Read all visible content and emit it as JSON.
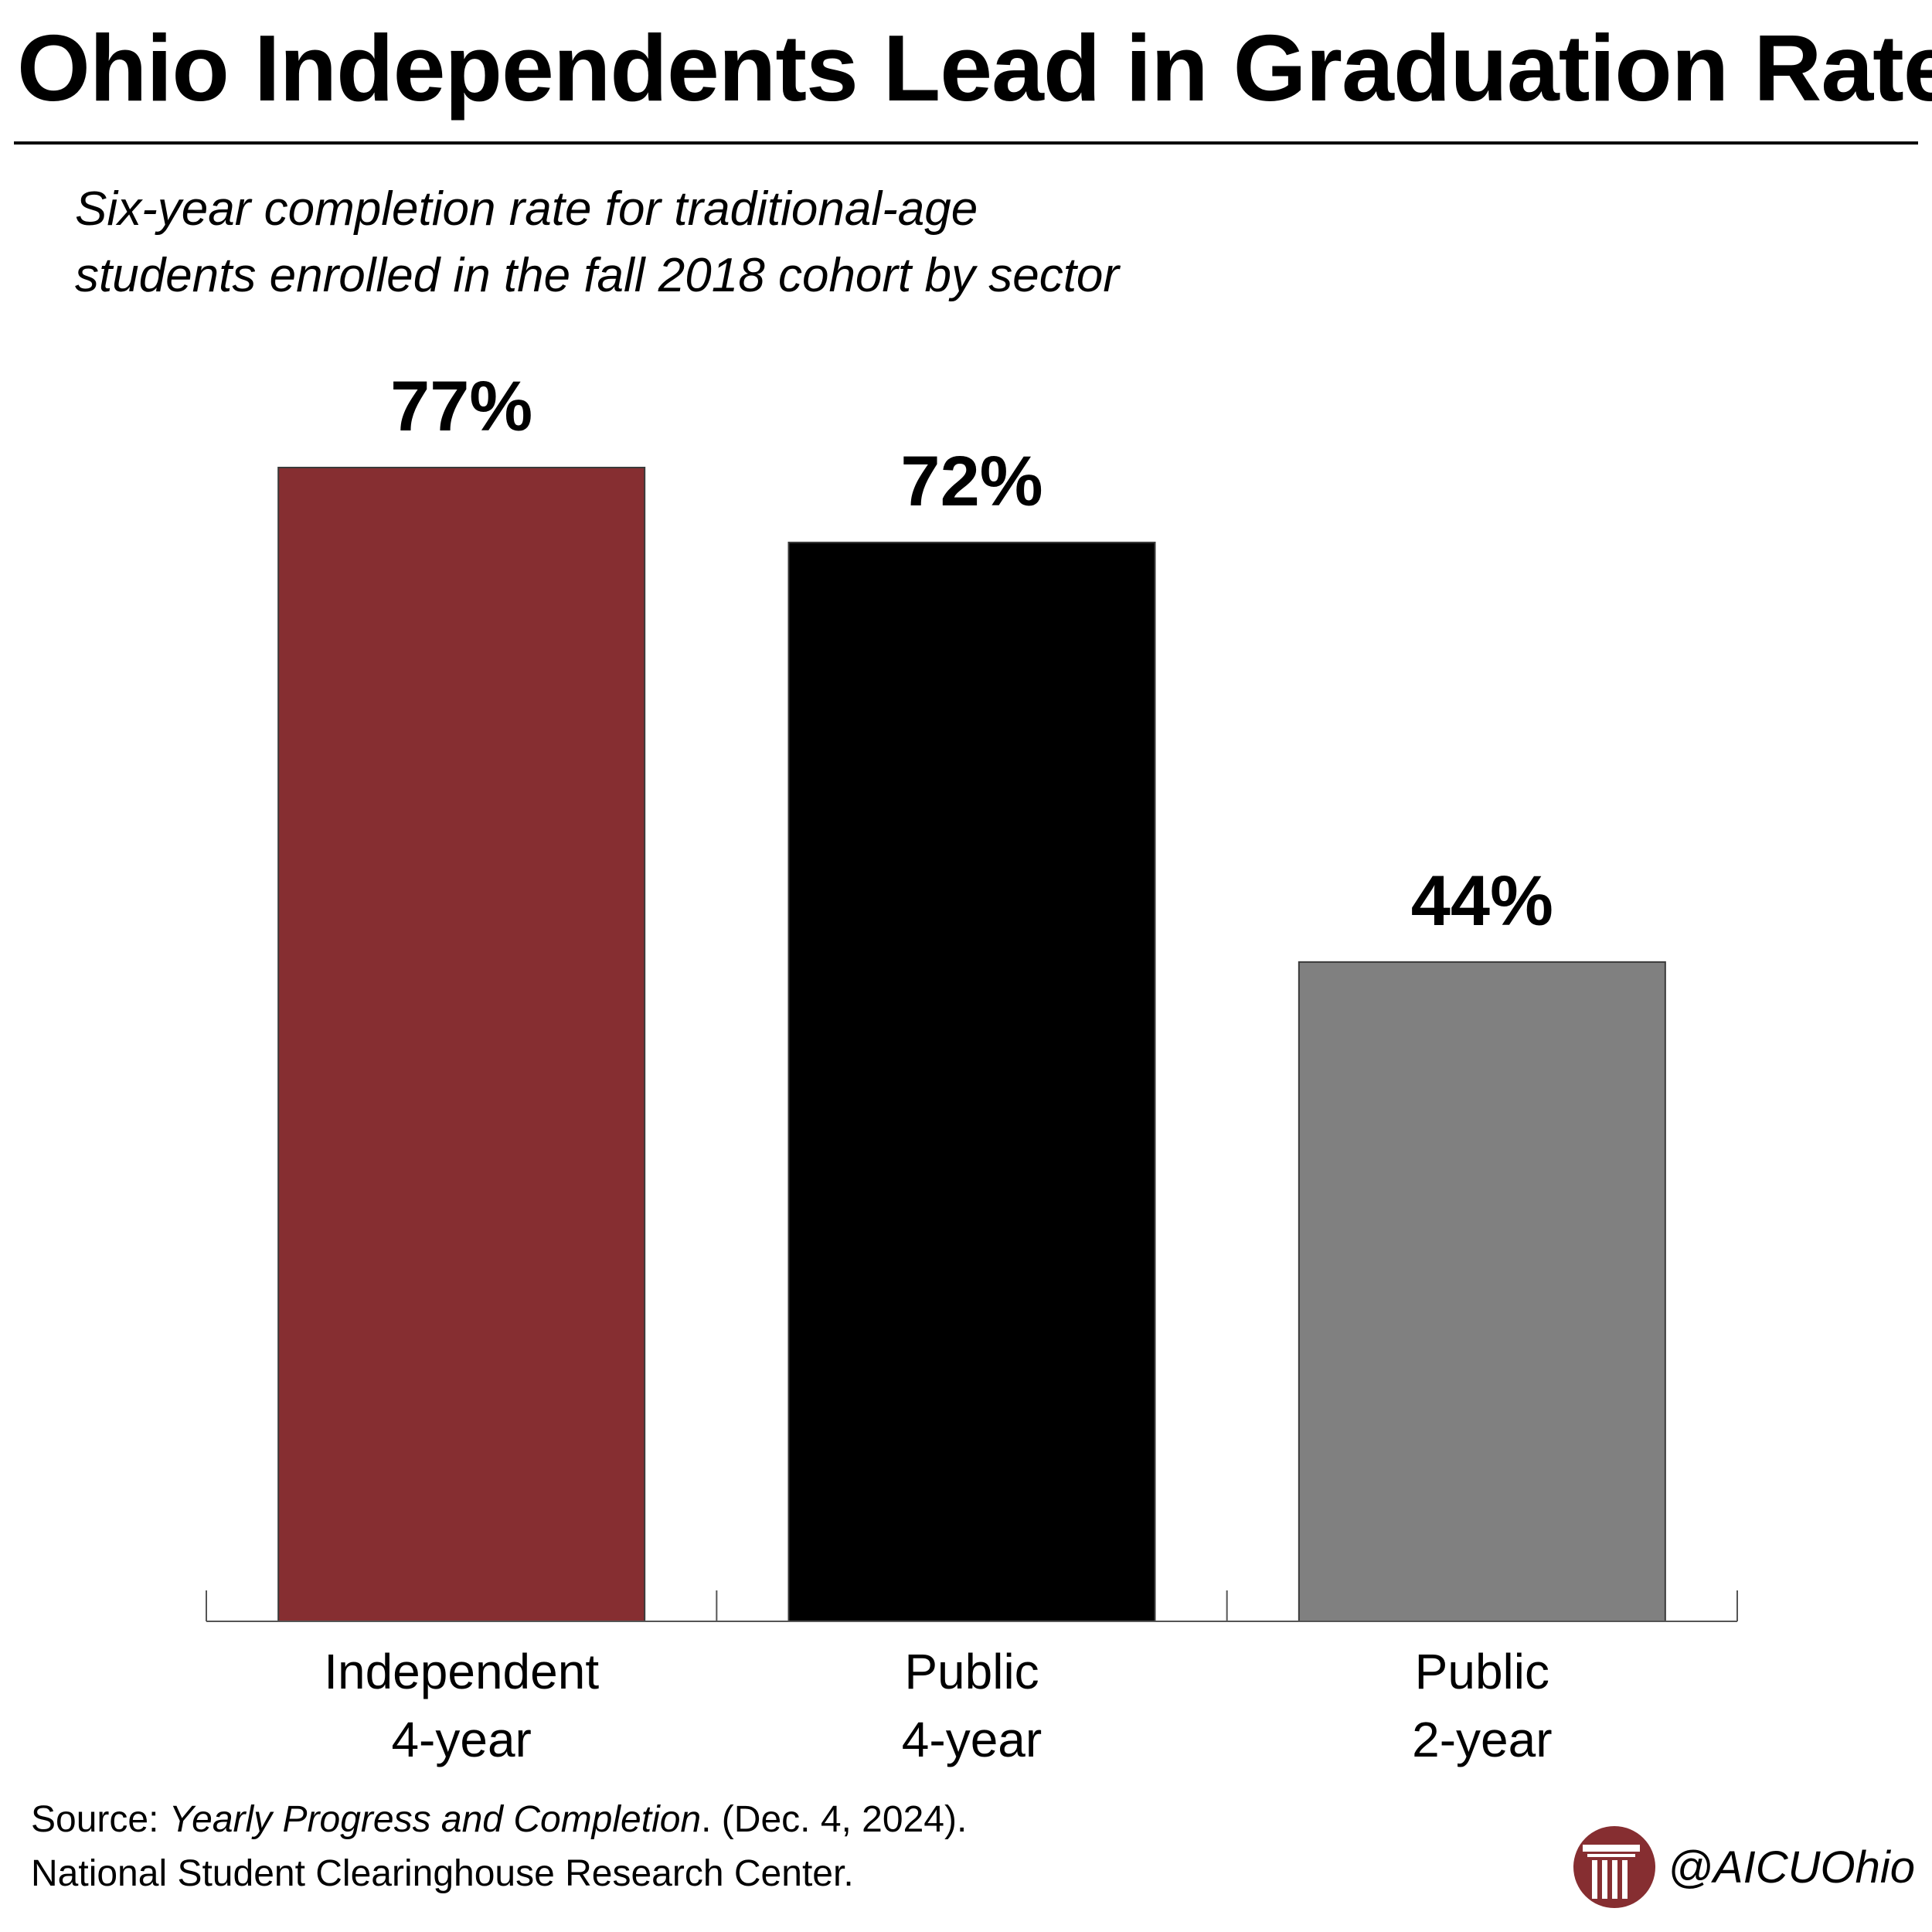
{
  "title": "Ohio Independents Lead in Graduation Rates",
  "subtitle_line1": "Six-year completion rate for traditional-age",
  "subtitle_line2": "students enrolled in the fall 2018 cohort by sector",
  "chart_data": {
    "type": "bar",
    "categories": [
      [
        "Independent",
        "4-year"
      ],
      [
        "Public",
        "4-year"
      ],
      [
        "Public",
        "2-year"
      ]
    ],
    "values": [
      77,
      72,
      44
    ],
    "value_labels": [
      "77%",
      "72%",
      "44%"
    ],
    "colors": [
      "#862e31",
      "#000000",
      "#808080"
    ],
    "ylim": [
      0,
      100
    ],
    "grid": false,
    "legend": "none"
  },
  "source": {
    "prefix": "Source: ",
    "publication": "Yearly Progress and Completion",
    "suffix": ". (Dec. 4, 2024).",
    "line2": "National Student Clearinghouse Research Center."
  },
  "brand": {
    "handle": "@AICUOhio",
    "logo_icon": "aicu-column-logo-icon",
    "logo_color": "#862e31"
  }
}
